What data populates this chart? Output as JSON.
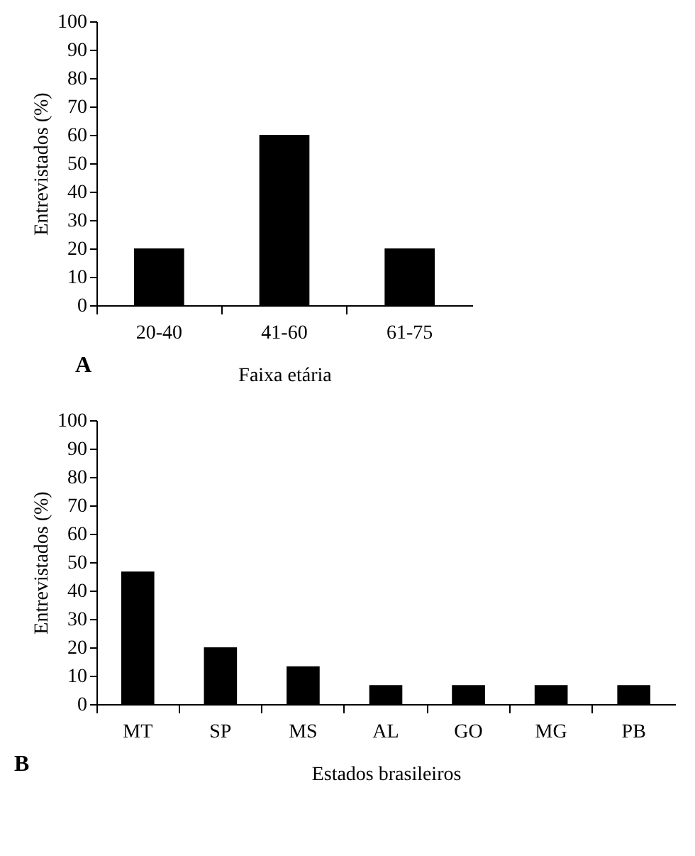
{
  "chart_data": [
    {
      "type": "bar",
      "categories": [
        "20-40",
        "41-60",
        "61-75"
      ],
      "values": [
        20,
        60,
        20
      ],
      "color": "#000000",
      "ylim": [
        0,
        100
      ],
      "yticks": [
        0,
        10,
        20,
        30,
        40,
        50,
        60,
        70,
        80,
        90,
        100
      ],
      "xlabel": "Faixa etária",
      "ylabel": "Entrevistados (%)",
      "annotations": [
        "A"
      ],
      "grid": false
    },
    {
      "type": "bar",
      "categories": [
        "MT",
        "SP",
        "MS",
        "AL",
        "GO",
        "MG",
        "PB"
      ],
      "values": [
        46.7,
        20,
        13.3,
        6.7,
        6.7,
        6.7,
        6.7
      ],
      "color": "#000000",
      "ylim": [
        0,
        100
      ],
      "yticks": [
        0,
        10,
        20,
        30,
        40,
        50,
        60,
        70,
        80,
        90,
        100
      ],
      "xlabel": "Estados brasileiros",
      "ylabel": "Entrevistados (%)",
      "annotations": [
        "B"
      ],
      "grid": false
    }
  ]
}
